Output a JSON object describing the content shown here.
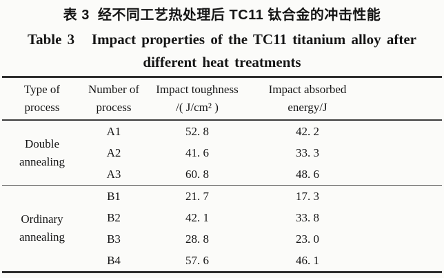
{
  "figure": {
    "title_zh": "表 3  经不同工艺热处理后 TC11 钛合金的冲击性能",
    "title_en_line1": "Table 3   Impact properties of the TC11 titanium alloy after",
    "title_en_line2": "different heat treatments"
  },
  "table": {
    "columns": [
      {
        "line1": "Type of",
        "line2": "process"
      },
      {
        "line1": "Number of",
        "line2": "process"
      },
      {
        "line1": "Impact toughness",
        "line2": "/( J/cm² )"
      },
      {
        "line1": "Impact absorbed",
        "line2": "energy/J"
      }
    ],
    "groups": [
      {
        "type": "Double annealing",
        "rows": [
          {
            "number": "A1",
            "impact_toughness": "52. 8",
            "impact_absorbed_energy": "42. 2"
          },
          {
            "number": "A2",
            "impact_toughness": "41. 6",
            "impact_absorbed_energy": "33. 3"
          },
          {
            "number": "A3",
            "impact_toughness": "60. 8",
            "impact_absorbed_energy": "48. 6"
          }
        ]
      },
      {
        "type": "Ordinary annealing",
        "rows": [
          {
            "number": "B1",
            "impact_toughness": "21. 7",
            "impact_absorbed_energy": "17. 3"
          },
          {
            "number": "B2",
            "impact_toughness": "42. 1",
            "impact_absorbed_energy": "33. 8"
          },
          {
            "number": "B3",
            "impact_toughness": "28. 8",
            "impact_absorbed_energy": "23. 0"
          },
          {
            "number": "B4",
            "impact_toughness": "57. 6",
            "impact_absorbed_energy": "46. 1"
          }
        ]
      }
    ]
  },
  "chart_data": {
    "type": "table",
    "title": "Table 3  Impact properties of the TC11 titanium alloy after different heat treatments",
    "columns": [
      "Type of process",
      "Number of process",
      "Impact toughness /(J/cm²)",
      "Impact absorbed energy/J"
    ],
    "rows": [
      [
        "Double annealing",
        "A1",
        52.8,
        42.2
      ],
      [
        "Double annealing",
        "A2",
        41.6,
        33.3
      ],
      [
        "Double annealing",
        "A3",
        60.8,
        48.6
      ],
      [
        "Ordinary annealing",
        "B1",
        21.7,
        17.3
      ],
      [
        "Ordinary annealing",
        "B2",
        42.1,
        33.8
      ],
      [
        "Ordinary annealing",
        "B3",
        28.8,
        23.0
      ],
      [
        "Ordinary annealing",
        "B4",
        57.6,
        46.1
      ]
    ]
  },
  "colors": {
    "background": "#fbfbf9",
    "text": "#151515",
    "rule_heavy": "#2e2e2e",
    "rule_light": "#4a4a4a"
  }
}
